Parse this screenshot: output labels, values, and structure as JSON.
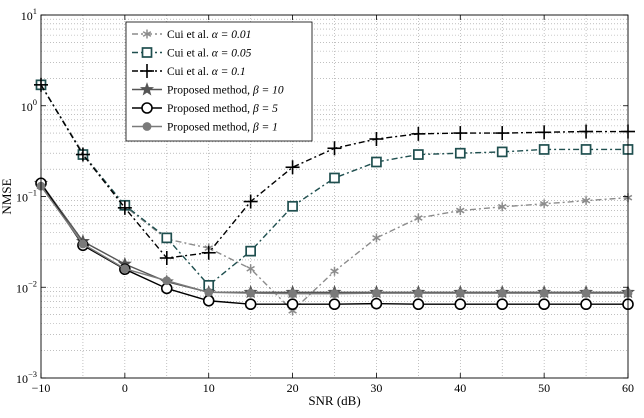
{
  "chart_data": {
    "type": "line",
    "title": "",
    "xlabel": "SNR (dB)",
    "ylabel": "NMSE",
    "xlim": [
      -10,
      60
    ],
    "ylim": [
      0.001,
      10
    ],
    "yscale": "log",
    "grid": true,
    "legend_position": "top-left",
    "x": [
      -10,
      -5,
      0,
      5,
      10,
      15,
      20,
      25,
      30,
      35,
      40,
      45,
      50,
      55,
      60
    ],
    "x_ticks": [
      {
        "value": -10,
        "label": "−10"
      },
      {
        "value": 0,
        "label": "0"
      },
      {
        "value": 10,
        "label": "10"
      },
      {
        "value": 20,
        "label": "20"
      },
      {
        "value": 30,
        "label": "30"
      },
      {
        "value": 40,
        "label": "40"
      },
      {
        "value": 50,
        "label": "50"
      },
      {
        "value": 60,
        "label": "60"
      }
    ],
    "y_ticks": [
      {
        "value": 0.001,
        "base": "10",
        "exp": "−3"
      },
      {
        "value": 0.01,
        "base": "10",
        "exp": "−2"
      },
      {
        "value": 0.1,
        "base": "10",
        "exp": "−1"
      },
      {
        "value": 1,
        "base": "10",
        "exp": "0"
      },
      {
        "value": 10,
        "base": "10",
        "exp": "1"
      }
    ],
    "series": [
      {
        "name": "Cui et al. α = 0.01",
        "legend_prefix": "Cui et al. ",
        "legend_math": "α = 0.01",
        "color": "#8c8c8c",
        "dash": "6,3,2,3",
        "marker": "asterisk",
        "values": [
          1.7,
          0.3,
          0.078,
          0.034,
          0.027,
          0.016,
          0.0055,
          0.015,
          0.035,
          0.058,
          0.07,
          0.077,
          0.083,
          0.09,
          0.097
        ]
      },
      {
        "name": "Cui et al. α = 0.05",
        "legend_prefix": "Cui et al. ",
        "legend_math": "α = 0.05",
        "color": "#1f4f4f",
        "dash": "6,3,2,3",
        "marker": "square",
        "values": [
          1.7,
          0.29,
          0.08,
          0.035,
          0.0105,
          0.025,
          0.078,
          0.16,
          0.24,
          0.29,
          0.3,
          0.31,
          0.33,
          0.33,
          0.33
        ]
      },
      {
        "name": "Cui et al. α = 0.1",
        "legend_prefix": "Cui et al. ",
        "legend_math": "α = 0.1",
        "color": "#000000",
        "dash": "6,3,2,3",
        "marker": "plus",
        "values": [
          1.7,
          0.29,
          0.075,
          0.021,
          0.024,
          0.088,
          0.21,
          0.34,
          0.43,
          0.49,
          0.5,
          0.5,
          0.51,
          0.52,
          0.52
        ]
      },
      {
        "name": "Proposed method, β = 10",
        "legend_prefix": "Proposed method, ",
        "legend_math": "β = 10",
        "color": "#555555",
        "dash": "",
        "marker": "star",
        "values": [
          0.14,
          0.032,
          0.018,
          0.0115,
          0.0088,
          0.0088,
          0.0088,
          0.0088,
          0.0088,
          0.0088,
          0.0088,
          0.0088,
          0.0088,
          0.0088,
          0.0088
        ]
      },
      {
        "name": "Proposed method, β = 5",
        "legend_prefix": "Proposed method, ",
        "legend_math": "β = 5",
        "color": "#000000",
        "dash": "",
        "marker": "circle-open",
        "values": [
          0.14,
          0.029,
          0.0158,
          0.0097,
          0.0071,
          0.0065,
          0.0065,
          0.0065,
          0.0066,
          0.0065,
          0.0065,
          0.0065,
          0.0065,
          0.0065,
          0.0065
        ]
      },
      {
        "name": "Proposed method, β = 1",
        "legend_prefix": "Proposed method, ",
        "legend_math": "β = 1",
        "color": "#7a7a7a",
        "dash": "",
        "marker": "circle-filled",
        "values": [
          0.13,
          0.03,
          0.016,
          0.0118,
          0.0088,
          0.0086,
          0.0085,
          0.0085,
          0.0086,
          0.0086,
          0.0086,
          0.0086,
          0.0086,
          0.0086,
          0.0086
        ]
      }
    ]
  }
}
